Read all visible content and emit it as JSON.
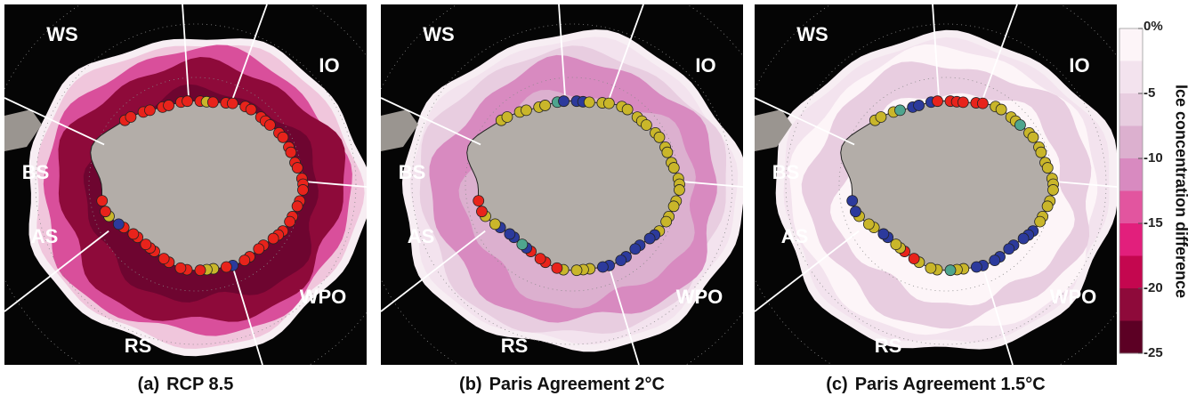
{
  "panels": [
    {
      "label": "(a)",
      "title": "RCP 8.5",
      "regions": [
        "WS",
        "IO",
        "BS",
        "AS",
        "RS",
        "WPO"
      ]
    },
    {
      "label": "(b)",
      "title": "Paris Agreement  2°C",
      "regions": [
        "WS",
        "IO",
        "BS",
        "AS",
        "RS",
        "WPO"
      ]
    },
    {
      "label": "(c)",
      "title": "Paris Agreement 1.5°C",
      "regions": [
        "WS",
        "IO",
        "BS",
        "AS",
        "RS",
        "WPO"
      ]
    }
  ],
  "colorbar": {
    "label": "Ice concentration difference",
    "lim": [
      -25,
      0
    ],
    "ticks": [
      {
        "value": 0,
        "label": "0%"
      },
      -5,
      -10,
      -15,
      -20,
      -25
    ],
    "colors": [
      "#fdf5f8",
      "#f3e3ee",
      "#e8cde0",
      "#dcb0cf",
      "#d88ac0",
      "#e2559f",
      "#e21f7c",
      "#c4074f",
      "#8e0a3a",
      "#5c0024"
    ]
  }
}
